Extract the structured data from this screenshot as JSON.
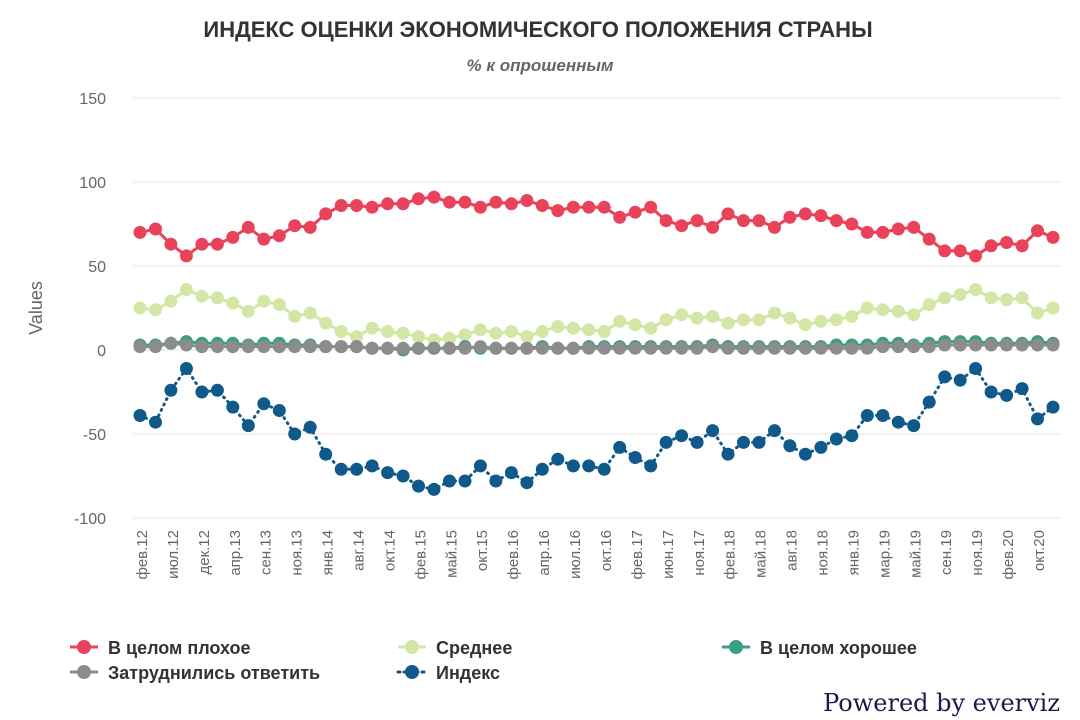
{
  "chart_data": {
    "type": "line",
    "title": "ИНДЕКС ОЦЕНКИ ЭКОНОМИЧЕСКОГО ПОЛОЖЕНИЯ СТРАНЫ",
    "subtitle": "% к опрошенным",
    "ylabel": "Values",
    "ylim": [
      -100,
      150
    ],
    "yticks": [
      "150",
      "100",
      "50",
      "0",
      "-50",
      "-100"
    ],
    "grid": true,
    "x_tick_labels": [
      "фев.12",
      "июл.12",
      "дек.12",
      "апр.13",
      "сен.13",
      "ноя.13",
      "янв.14",
      "авг.14",
      "окт.14",
      "фев.15",
      "май.15",
      "окт.15",
      "фев.16",
      "апр.16",
      "июл.16",
      "окт.16",
      "фев.17",
      "июн.17",
      "ноя.17",
      "фев.18",
      "май.18",
      "авг.18",
      "ноя.18",
      "янв.19",
      "мар.19",
      "май.19",
      "сен.19",
      "ноя.19",
      "фев.20",
      "окт.20"
    ],
    "series": [
      {
        "name": "В целом плохое",
        "color": "#e8435a",
        "dotted": false,
        "values": [
          70,
          72,
          63,
          56,
          63,
          63,
          67,
          73,
          66,
          68,
          74,
          73,
          81,
          86,
          86,
          85,
          87,
          87,
          90,
          91,
          88,
          88,
          85,
          88,
          87,
          89,
          86,
          83,
          85,
          85,
          85,
          79,
          82,
          85,
          77,
          74,
          77,
          73,
          81,
          77,
          77,
          73,
          79,
          81,
          80,
          77,
          75,
          70,
          70,
          72,
          73,
          66,
          59,
          59,
          56,
          62,
          64,
          62,
          71,
          67
        ]
      },
      {
        "name": "Среднее",
        "color": "#d4e6a5",
        "dotted": false,
        "values": [
          25,
          24,
          29,
          36,
          32,
          31,
          28,
          23,
          29,
          27,
          20,
          22,
          16,
          11,
          8,
          13,
          11,
          10,
          8,
          6,
          7,
          9,
          12,
          10,
          11,
          8,
          11,
          14,
          13,
          12,
          11,
          17,
          15,
          13,
          18,
          21,
          19,
          20,
          16,
          18,
          18,
          22,
          19,
          15,
          17,
          18,
          20,
          25,
          24,
          23,
          21,
          27,
          31,
          33,
          36,
          31,
          30,
          31,
          22,
          25
        ]
      },
      {
        "name": "В целом хорошее",
        "color": "#3a9e84",
        "dotted": false,
        "values": [
          3,
          3,
          4,
          5,
          4,
          4,
          4,
          3,
          4,
          4,
          3,
          3,
          2,
          2,
          2,
          1,
          1,
          0,
          1,
          1,
          1,
          2,
          1,
          1,
          1,
          1,
          2,
          1,
          1,
          2,
          2,
          2,
          2,
          2,
          2,
          2,
          2,
          3,
          2,
          2,
          2,
          2,
          2,
          2,
          2,
          3,
          3,
          3,
          4,
          4,
          3,
          4,
          5,
          5,
          5,
          4,
          4,
          4,
          5,
          4
        ]
      },
      {
        "name": "Затруднились ответить",
        "color": "#8c8c8c",
        "dotted": false,
        "values": [
          2,
          2,
          4,
          3,
          2,
          2,
          2,
          2,
          2,
          2,
          2,
          2,
          2,
          2,
          2,
          1,
          1,
          1,
          1,
          1,
          1,
          1,
          2,
          1,
          1,
          1,
          1,
          1,
          1,
          1,
          1,
          1,
          1,
          1,
          1,
          1,
          1,
          2,
          1,
          1,
          1,
          1,
          1,
          1,
          1,
          1,
          1,
          1,
          2,
          2,
          2,
          2,
          3,
          3,
          3,
          3,
          3,
          3,
          3,
          3
        ]
      },
      {
        "name": "Индекс",
        "color": "#0f5a8a",
        "dotted": true,
        "values": [
          -39,
          -43,
          -24,
          -11,
          -25,
          -24,
          -34,
          -45,
          -32,
          -36,
          -50,
          -46,
          -62,
          -71,
          -71,
          -69,
          -73,
          -75,
          -81,
          -83,
          -78,
          -78,
          -69,
          -78,
          -73,
          -79,
          -71,
          -65,
          -69,
          -69,
          -71,
          -58,
          -64,
          -69,
          -55,
          -51,
          -55,
          -48,
          -62,
          -55,
          -55,
          -48,
          -57,
          -62,
          -58,
          -53,
          -51,
          -39,
          -39,
          -43,
          -45,
          -31,
          -16,
          -18,
          -11,
          -25,
          -27,
          -23,
          -41,
          -34
        ]
      }
    ]
  },
  "credit": "Powered by everviz"
}
